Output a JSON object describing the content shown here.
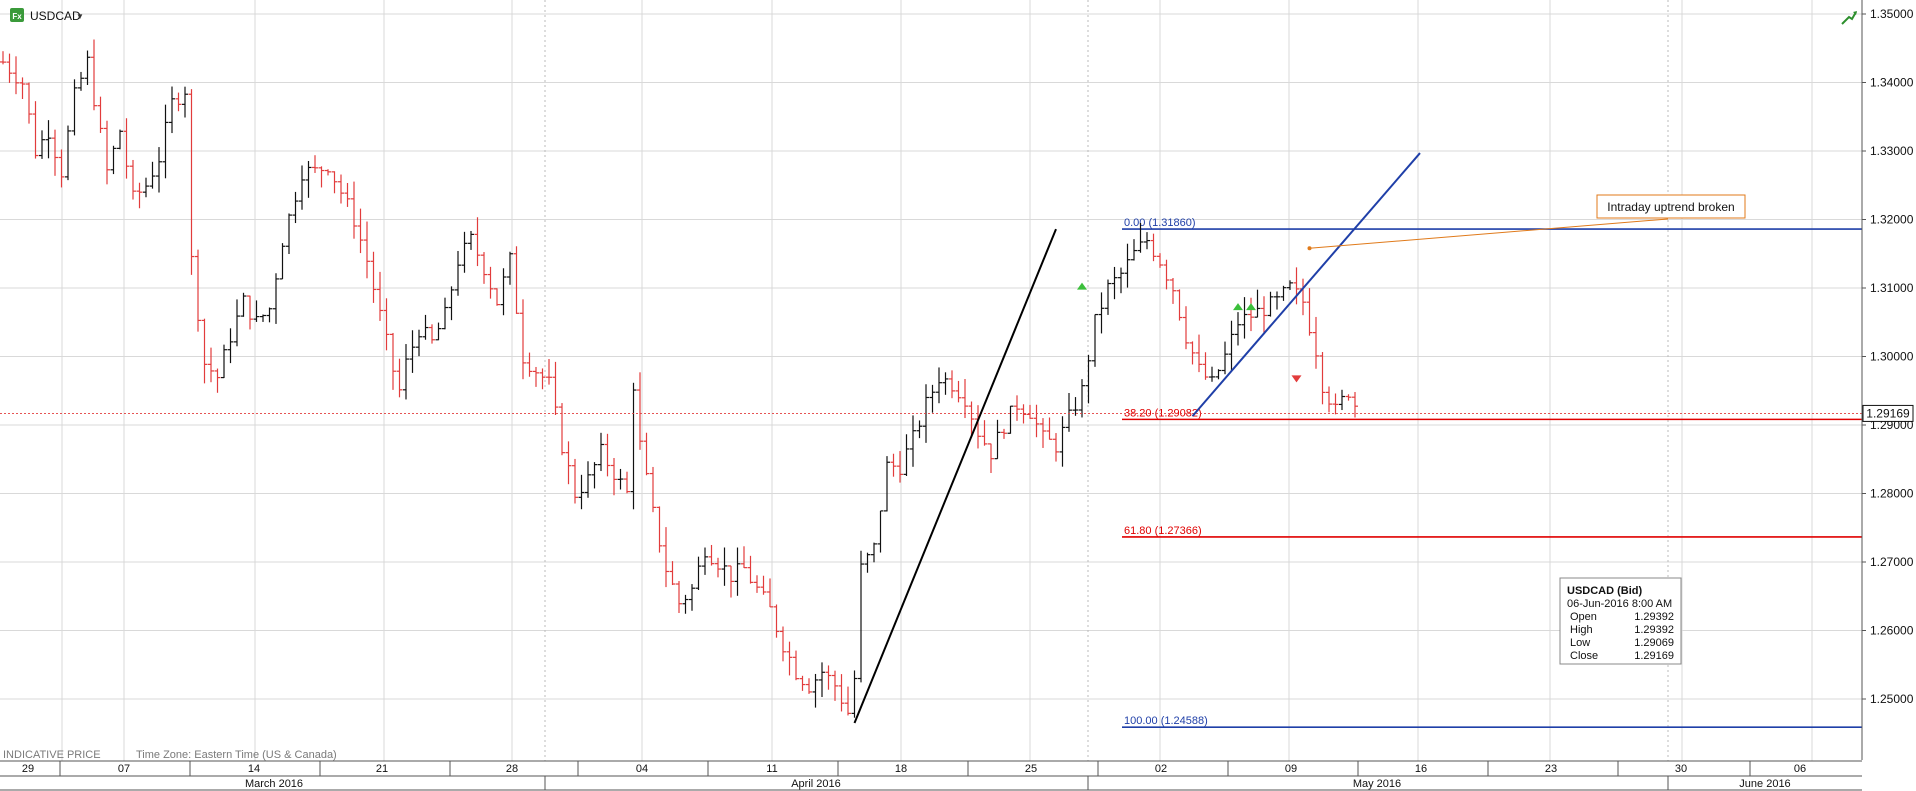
{
  "header": {
    "symbol": "USDCAD",
    "dropdown_glyph": "▼",
    "badge_text": "Fx",
    "icons": [
      "fx-badge-icon",
      "dropdown-arrow-icon",
      "chart-trend-icon"
    ]
  },
  "footer": {
    "indicative": "INDICATIVE PRICE",
    "timezone": "Time Zone: Eastern Time (US & Canada)"
  },
  "colors": {
    "bull": "#111111",
    "bear": "#e23c3c",
    "fib_zero": "#1f3fa8",
    "fib_red": "#e00000",
    "grid": "#d9d9d9",
    "annotation_border": "#e07a1a"
  },
  "chart_data": {
    "type": "ohlc",
    "symbol": "USDCAD",
    "ylim": [
      1.2445,
      1.3515
    ],
    "y_ticks": [
      "1.35000",
      "1.34000",
      "1.33000",
      "1.32000",
      "1.31000",
      "1.30000",
      "1.29000",
      "1.28000",
      "1.27000",
      "1.26000",
      "1.25000"
    ],
    "y_tick_values": [
      1.35,
      1.34,
      1.33,
      1.32,
      1.31,
      1.3,
      1.29,
      1.28,
      1.27,
      1.26,
      1.25
    ],
    "x_day_labels": [
      "29",
      "07",
      "14",
      "21",
      "28",
      "04",
      "11",
      "18",
      "25",
      "02",
      "09",
      "16",
      "23",
      "30",
      "06"
    ],
    "x_month_labels": [
      "March 2016",
      "April 2016",
      "May 2016",
      "June 2016"
    ],
    "current_price": 1.29169,
    "current_price_label": "1.29169",
    "waypoints": [
      [
        0,
        1.343
      ],
      [
        3,
        1.34
      ],
      [
        5,
        1.33
      ],
      [
        7,
        1.333
      ],
      [
        9,
        1.327
      ],
      [
        11,
        1.338
      ],
      [
        13,
        1.343
      ],
      [
        16,
        1.327
      ],
      [
        18,
        1.333
      ],
      [
        20,
        1.323
      ],
      [
        22,
        1.325
      ],
      [
        24,
        1.329
      ],
      [
        26,
        1.337
      ],
      [
        28,
        1.339
      ],
      [
        29,
        1.314
      ],
      [
        31,
        1.299
      ],
      [
        33,
        1.297
      ],
      [
        35,
        1.303
      ],
      [
        37,
        1.308
      ],
      [
        39,
        1.305
      ],
      [
        41,
        1.307
      ],
      [
        43,
        1.317
      ],
      [
        46,
        1.327
      ],
      [
        48,
        1.327
      ],
      [
        50,
        1.328
      ],
      [
        52,
        1.324
      ],
      [
        54,
        1.32
      ],
      [
        56,
        1.314
      ],
      [
        58,
        1.306
      ],
      [
        60,
        1.298
      ],
      [
        61,
        1.295
      ],
      [
        62,
        1.299
      ],
      [
        64,
        1.304
      ],
      [
        66,
        1.302
      ],
      [
        68,
        1.306
      ],
      [
        70,
        1.314
      ],
      [
        72,
        1.317
      ],
      [
        74,
        1.313
      ],
      [
        76,
        1.308
      ],
      [
        78,
        1.314
      ],
      [
        80,
        1.3
      ],
      [
        82,
        1.298
      ],
      [
        84,
        1.296
      ],
      [
        86,
        1.287
      ],
      [
        88,
        1.28
      ],
      [
        90,
        1.282
      ],
      [
        92,
        1.286
      ],
      [
        94,
        1.283
      ],
      [
        96,
        1.28
      ],
      [
        97,
        1.296
      ],
      [
        98,
        1.287
      ],
      [
        100,
        1.277
      ],
      [
        102,
        1.269
      ],
      [
        104,
        1.264
      ],
      [
        106,
        1.266
      ],
      [
        108,
        1.272
      ],
      [
        110,
        1.27
      ],
      [
        112,
        1.268
      ],
      [
        114,
        1.269
      ],
      [
        116,
        1.266
      ],
      [
        118,
        1.263
      ],
      [
        120,
        1.258
      ],
      [
        122,
        1.254
      ],
      [
        124,
        1.252
      ],
      [
        126,
        1.254
      ],
      [
        128,
        1.252
      ],
      [
        130,
        1.248
      ],
      [
        131,
        1.253
      ],
      [
        132,
        1.269
      ],
      [
        134,
        1.272
      ],
      [
        136,
        1.284
      ],
      [
        138,
        1.284
      ],
      [
        140,
        1.288
      ],
      [
        142,
        1.293
      ],
      [
        144,
        1.297
      ],
      [
        146,
        1.296
      ],
      [
        148,
        1.294
      ],
      [
        150,
        1.289
      ],
      [
        152,
        1.286
      ],
      [
        154,
        1.29
      ],
      [
        156,
        1.293
      ],
      [
        158,
        1.292
      ],
      [
        160,
        1.288
      ],
      [
        162,
        1.287
      ],
      [
        164,
        1.291
      ],
      [
        166,
        1.295
      ],
      [
        168,
        1.305
      ],
      [
        170,
        1.31
      ],
      [
        172,
        1.312
      ],
      [
        174,
        1.315
      ],
      [
        176,
        1.317
      ],
      [
        178,
        1.314
      ],
      [
        180,
        1.31
      ],
      [
        182,
        1.303
      ],
      [
        184,
        1.298
      ],
      [
        186,
        1.296
      ],
      [
        188,
        1.3
      ],
      [
        190,
        1.305
      ],
      [
        192,
        1.306
      ],
      [
        194,
        1.307
      ],
      [
        196,
        1.308
      ],
      [
        198,
        1.31
      ],
      [
        200,
        1.308
      ],
      [
        202,
        1.301
      ],
      [
        203,
        1.296
      ],
      [
        205,
        1.292
      ],
      [
        207,
        1.295
      ],
      [
        208,
        1.293
      ]
    ],
    "fibonacci": [
      {
        "label": "0.00 (1.31860)",
        "price": 1.3186,
        "color": "#1f3fa8"
      },
      {
        "label": "38.20 (1.29082)",
        "price": 1.29082,
        "color": "#e00000"
      },
      {
        "label": "61.80 (1.27366)",
        "price": 1.27366,
        "color": "#e00000"
      },
      {
        "label": "100.00 (1.24588)",
        "price": 1.24588,
        "color": "#1f3fa8"
      }
    ],
    "trendlines": [
      {
        "name": "fib-swing-line",
        "color": "#000000",
        "points": [
          [
            131,
            1.2465
          ],
          [
            162,
            1.3186
          ]
        ]
      },
      {
        "name": "intraday-uptrend-line",
        "color": "#1f3fa8",
        "points": [
          [
            183,
            1.2913
          ],
          [
            218,
            1.3297
          ]
        ]
      }
    ],
    "markers": [
      {
        "name": "green-triangle-1",
        "bar": 166,
        "price": 1.3102,
        "dir": "up",
        "color": "#3bbf3b"
      },
      {
        "name": "green-triangle-2",
        "bar": 190,
        "price": 1.3072,
        "dir": "up",
        "color": "#3bbf3b"
      },
      {
        "name": "green-triangle-3",
        "bar": 192,
        "price": 1.3072,
        "dir": "up",
        "color": "#3bbf3b"
      },
      {
        "name": "red-triangle-1",
        "bar": 199,
        "price": 1.2968,
        "dir": "down",
        "color": "#e23c3c"
      }
    ],
    "annotation": {
      "text": "Intraday uptrend broken",
      "arrow_to_bar": 201,
      "arrow_to_price": 1.3158
    },
    "info_box": {
      "title": "USDCAD (Bid)",
      "datetime": "06-Jun-2016 8:00 AM",
      "rows": [
        {
          "label": "Open",
          "value": "1.29392"
        },
        {
          "label": "High",
          "value": "1.29392"
        },
        {
          "label": "Low",
          "value": "1.29069"
        },
        {
          "label": "Close",
          "value": "1.29169"
        }
      ]
    }
  }
}
